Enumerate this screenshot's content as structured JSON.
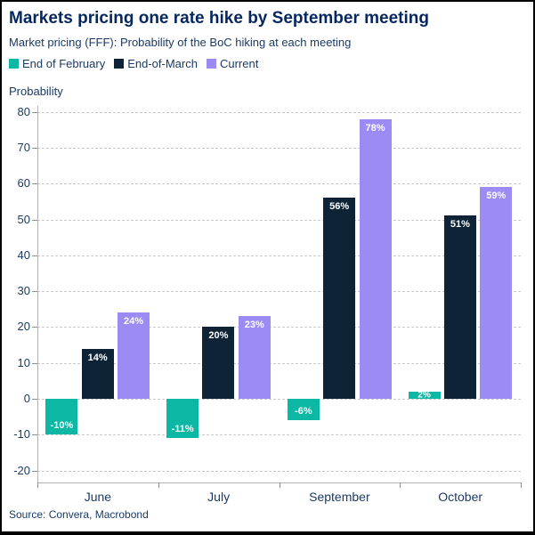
{
  "header": {
    "title": "Markets pricing one rate hike by September meeting",
    "subtitle": "Market pricing (FFF): Probability of the BoC hiking at each meeting"
  },
  "source": "Source: Convera, Macrobond",
  "colors": {
    "title_text": "#06275e",
    "body_text": "#1b3a66",
    "gridline": "#c9c9c9",
    "axis_line": "#b3b3b3",
    "background": "#ffffff",
    "frame_border": "#000000",
    "data_label": "#ffffff"
  },
  "chart_data": {
    "type": "bar",
    "title": "Markets pricing one rate hike by September meeting",
    "subtitle": "Market pricing (FFF): Probability of the BoC hiking at each meeting",
    "categories": [
      "June",
      "July",
      "September",
      "October"
    ],
    "series": [
      {
        "name": "End of February",
        "color": "#0cb7a4",
        "values": [
          -10,
          -11,
          -6,
          2
        ]
      },
      {
        "name": "End-of-March",
        "color": "#0f2337",
        "values": [
          14,
          20,
          56,
          51
        ]
      },
      {
        "name": "Current",
        "color": "#9c8bf2",
        "values": [
          24,
          23,
          78,
          59
        ]
      }
    ],
    "data_label_format": "{value}%",
    "xlabel": "",
    "ylabel": "Probability",
    "ylim": [
      -20,
      80
    ],
    "yticks": [
      80,
      70,
      60,
      50,
      40,
      30,
      20,
      10,
      0,
      -10,
      -20
    ],
    "grid": true,
    "grid_style": "dashed",
    "legend_position": "top"
  }
}
